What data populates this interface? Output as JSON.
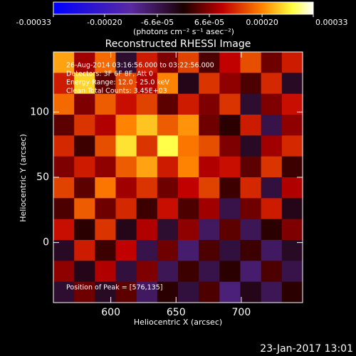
{
  "chart_data": {
    "type": "heatmap",
    "title": "Reconstructed RHESSI Image",
    "x_label": "Heliocentric X (arcsec)",
    "y_label": "Heliocentric Y (arcsec)",
    "colorbar_label": "(photons cm⁻² s⁻¹ asec⁻²)",
    "colorbar_ticks": [
      {
        "value": -0.00033,
        "label": "-0.00033"
      },
      {
        "value": -0.0002,
        "label": "-0.00020"
      },
      {
        "value": -6.6e-05,
        "label": "-6.6e-05"
      },
      {
        "value": 6.6e-05,
        "label": "6.6e-05"
      },
      {
        "value": 0.0002,
        "label": "0.00020"
      },
      {
        "value": 0.00033,
        "label": "0.00033"
      }
    ],
    "clim": [
      -0.00033,
      0.00033
    ],
    "annotations": [
      "26-Aug-2014 03:16:56.000 to 03:22:56.000",
      "Detectors: 3F 6F 8F, Att 0",
      "Energy Range: 12.0 - 25.0 keV",
      "Clean     Total Counts: 3.45E+03"
    ],
    "peak_note": "Position of Peak = [576,135]",
    "footer": "23-Jan-2017 13:01",
    "xlim": [
      556,
      747
    ],
    "ylim": [
      -46,
      146
    ],
    "xticks": [
      600,
      650,
      700
    ],
    "yticks": [
      0,
      50,
      100
    ],
    "z": [
      [
        0.00022,
        8e-05,
        0.00018,
        -4e-05,
        0.00012,
        6e-05,
        0.00015,
        3e-05,
        0.0001,
        0.00016,
        5e-05,
        0.00012
      ],
      [
        0.00012,
        0.00025,
        4e-05,
        0.00016,
        9e-05,
        0.0002,
        -2e-05,
        0.00014,
        7e-05,
        3e-05,
        0.00013,
        -3e-05
      ],
      [
        0.00018,
        6e-05,
        0.00017,
        0.00011,
        0.00015,
        4e-05,
        0.00012,
        6e-05,
        0.00014,
        -4e-05,
        6e-05,
        0.00011
      ],
      [
        4e-05,
        0.00014,
        9e-05,
        0.0002,
        0.00024,
        0.00017,
        0.00021,
        5e-05,
        1e-05,
        0.00012,
        -6e-05,
        7e-05
      ],
      [
        0.00013,
        2e-05,
        0.00016,
        0.00026,
        0.00014,
        0.00028,
        0.00019,
        0.00016,
        6e-05,
        -3e-05,
        8e-05,
        0.00013
      ],
      [
        6e-05,
        0.00012,
        7e-05,
        0.00017,
        0.00022,
        0.00012,
        0.0002,
        9e-05,
        0.00011,
        4e-05,
        0.00014,
        2e-05
      ],
      [
        0.00015,
        4e-05,
        0.00019,
        8e-05,
        0.00014,
        5e-05,
        0.0001,
        0.00015,
        2e-05,
        0.00013,
        -5e-05,
        9e-05
      ],
      [
        3e-05,
        0.00017,
        5e-05,
        0.00013,
        2e-05,
        0.00011,
        3e-05,
        8e-05,
        -6e-05,
        5e-05,
        0.00012,
        -2e-05
      ],
      [
        0.00011,
        1e-05,
        0.00014,
        -2e-05,
        9e-05,
        -4e-05,
        7e-05,
        -8e-05,
        4e-05,
        -7e-05,
        1e-05,
        6e-05
      ],
      [
        -3e-05,
        0.00012,
        2e-05,
        0.0001,
        -6e-05,
        5e-05,
        -9e-05,
        3e-05,
        -5e-05,
        2e-05,
        -8e-05,
        -3e-05
      ],
      [
        7e-05,
        -2e-05,
        9e-05,
        -5e-05,
        6e-05,
        -7e-05,
        2e-05,
        -6e-05,
        1e-05,
        -9e-05,
        3e-05,
        -6e-05
      ],
      [
        -4e-05,
        5e-05,
        -3e-05,
        4e-05,
        -8e-05,
        1e-05,
        -5e-05,
        3e-05,
        -0.0001,
        -2e-05,
        -7e-05,
        1e-05
      ]
    ]
  }
}
